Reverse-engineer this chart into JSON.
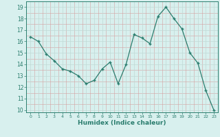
{
  "x": [
    0,
    1,
    2,
    3,
    4,
    5,
    6,
    7,
    8,
    9,
    10,
    11,
    12,
    13,
    14,
    15,
    16,
    17,
    18,
    19,
    20,
    21,
    22,
    23
  ],
  "y": [
    16.4,
    16.0,
    14.9,
    14.3,
    13.6,
    13.4,
    13.0,
    12.3,
    12.6,
    13.6,
    14.2,
    12.3,
    14.0,
    16.6,
    16.3,
    15.8,
    18.2,
    19.0,
    18.0,
    17.1,
    15.0,
    14.1,
    11.7,
    10.0
  ],
  "xlabel": "Humidex (Indice chaleur)",
  "line_color": "#2a7d6e",
  "marker": "+",
  "bg_color": "#d8f0ee",
  "grid_major_color": "#c0d8d5",
  "grid_minor_color": "#e0b0b0",
  "ylim": [
    9.8,
    19.5
  ],
  "xlim": [
    -0.5,
    23.5
  ],
  "yticks": [
    10,
    11,
    12,
    13,
    14,
    15,
    16,
    17,
    18,
    19
  ],
  "xticks": [
    0,
    1,
    2,
    3,
    4,
    5,
    6,
    7,
    8,
    9,
    10,
    11,
    12,
    13,
    14,
    15,
    16,
    17,
    18,
    19,
    20,
    21,
    22,
    23
  ]
}
